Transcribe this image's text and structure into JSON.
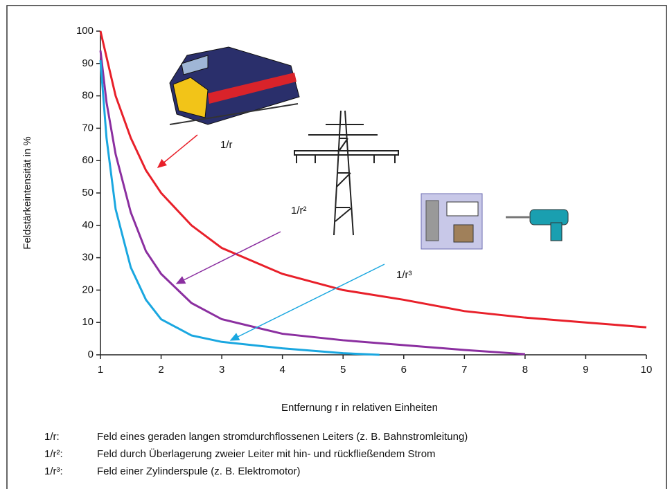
{
  "chart_data": {
    "type": "line",
    "ylabel": "Feldstärkeintensität in %",
    "xlabel": "Entfernung r in relativen Einheiten",
    "xlim": [
      1,
      10
    ],
    "xticks": [
      1,
      2,
      3,
      4,
      5,
      6,
      7,
      8,
      9,
      10
    ],
    "ylim": [
      0,
      100
    ],
    "yticks": [
      0,
      10,
      20,
      30,
      40,
      50,
      60,
      70,
      80,
      90,
      100
    ],
    "grid": false,
    "series": [
      {
        "name": "1/r",
        "color": "#e8202a",
        "x": [
          1,
          1.25,
          1.5,
          1.75,
          2,
          2.5,
          3,
          3.5,
          4,
          5,
          6,
          7,
          8,
          9,
          10
        ],
        "values": [
          100,
          80,
          67,
          57,
          50,
          40,
          33,
          29,
          25,
          20,
          17,
          13.5,
          11.5,
          10,
          8.5
        ]
      },
      {
        "name": "1/r²",
        "color": "#8b2fa0",
        "x": [
          1,
          1.1,
          1.25,
          1.5,
          1.75,
          2,
          2.5,
          3,
          4,
          5,
          6,
          7,
          8
        ],
        "values": [
          94,
          78,
          62,
          44,
          32,
          25,
          16,
          11,
          6.5,
          4.5,
          3,
          1.5,
          0.2
        ]
      },
      {
        "name": "1/r³",
        "color": "#1aa7e0",
        "x": [
          1,
          1.1,
          1.25,
          1.5,
          1.75,
          2,
          2.5,
          3,
          4,
          5,
          5.6
        ],
        "values": [
          91,
          67,
          45,
          27,
          17,
          11,
          6,
          4,
          2,
          0.5,
          0
        ]
      }
    ],
    "notes": [
      {
        "key": "1/r:",
        "text": "Feld eines geraden langen stromdurchflossenen Leiters (z. B. Bahnstromleitung)"
      },
      {
        "key": "1/r²:",
        "text": "Feld durch Überlagerung zweier Leiter mit hin- und rückfließendem Strom"
      },
      {
        "key": "1/r³:",
        "text": "Feld einer Zylinderspule (z. B. Elektromotor)"
      }
    ]
  }
}
